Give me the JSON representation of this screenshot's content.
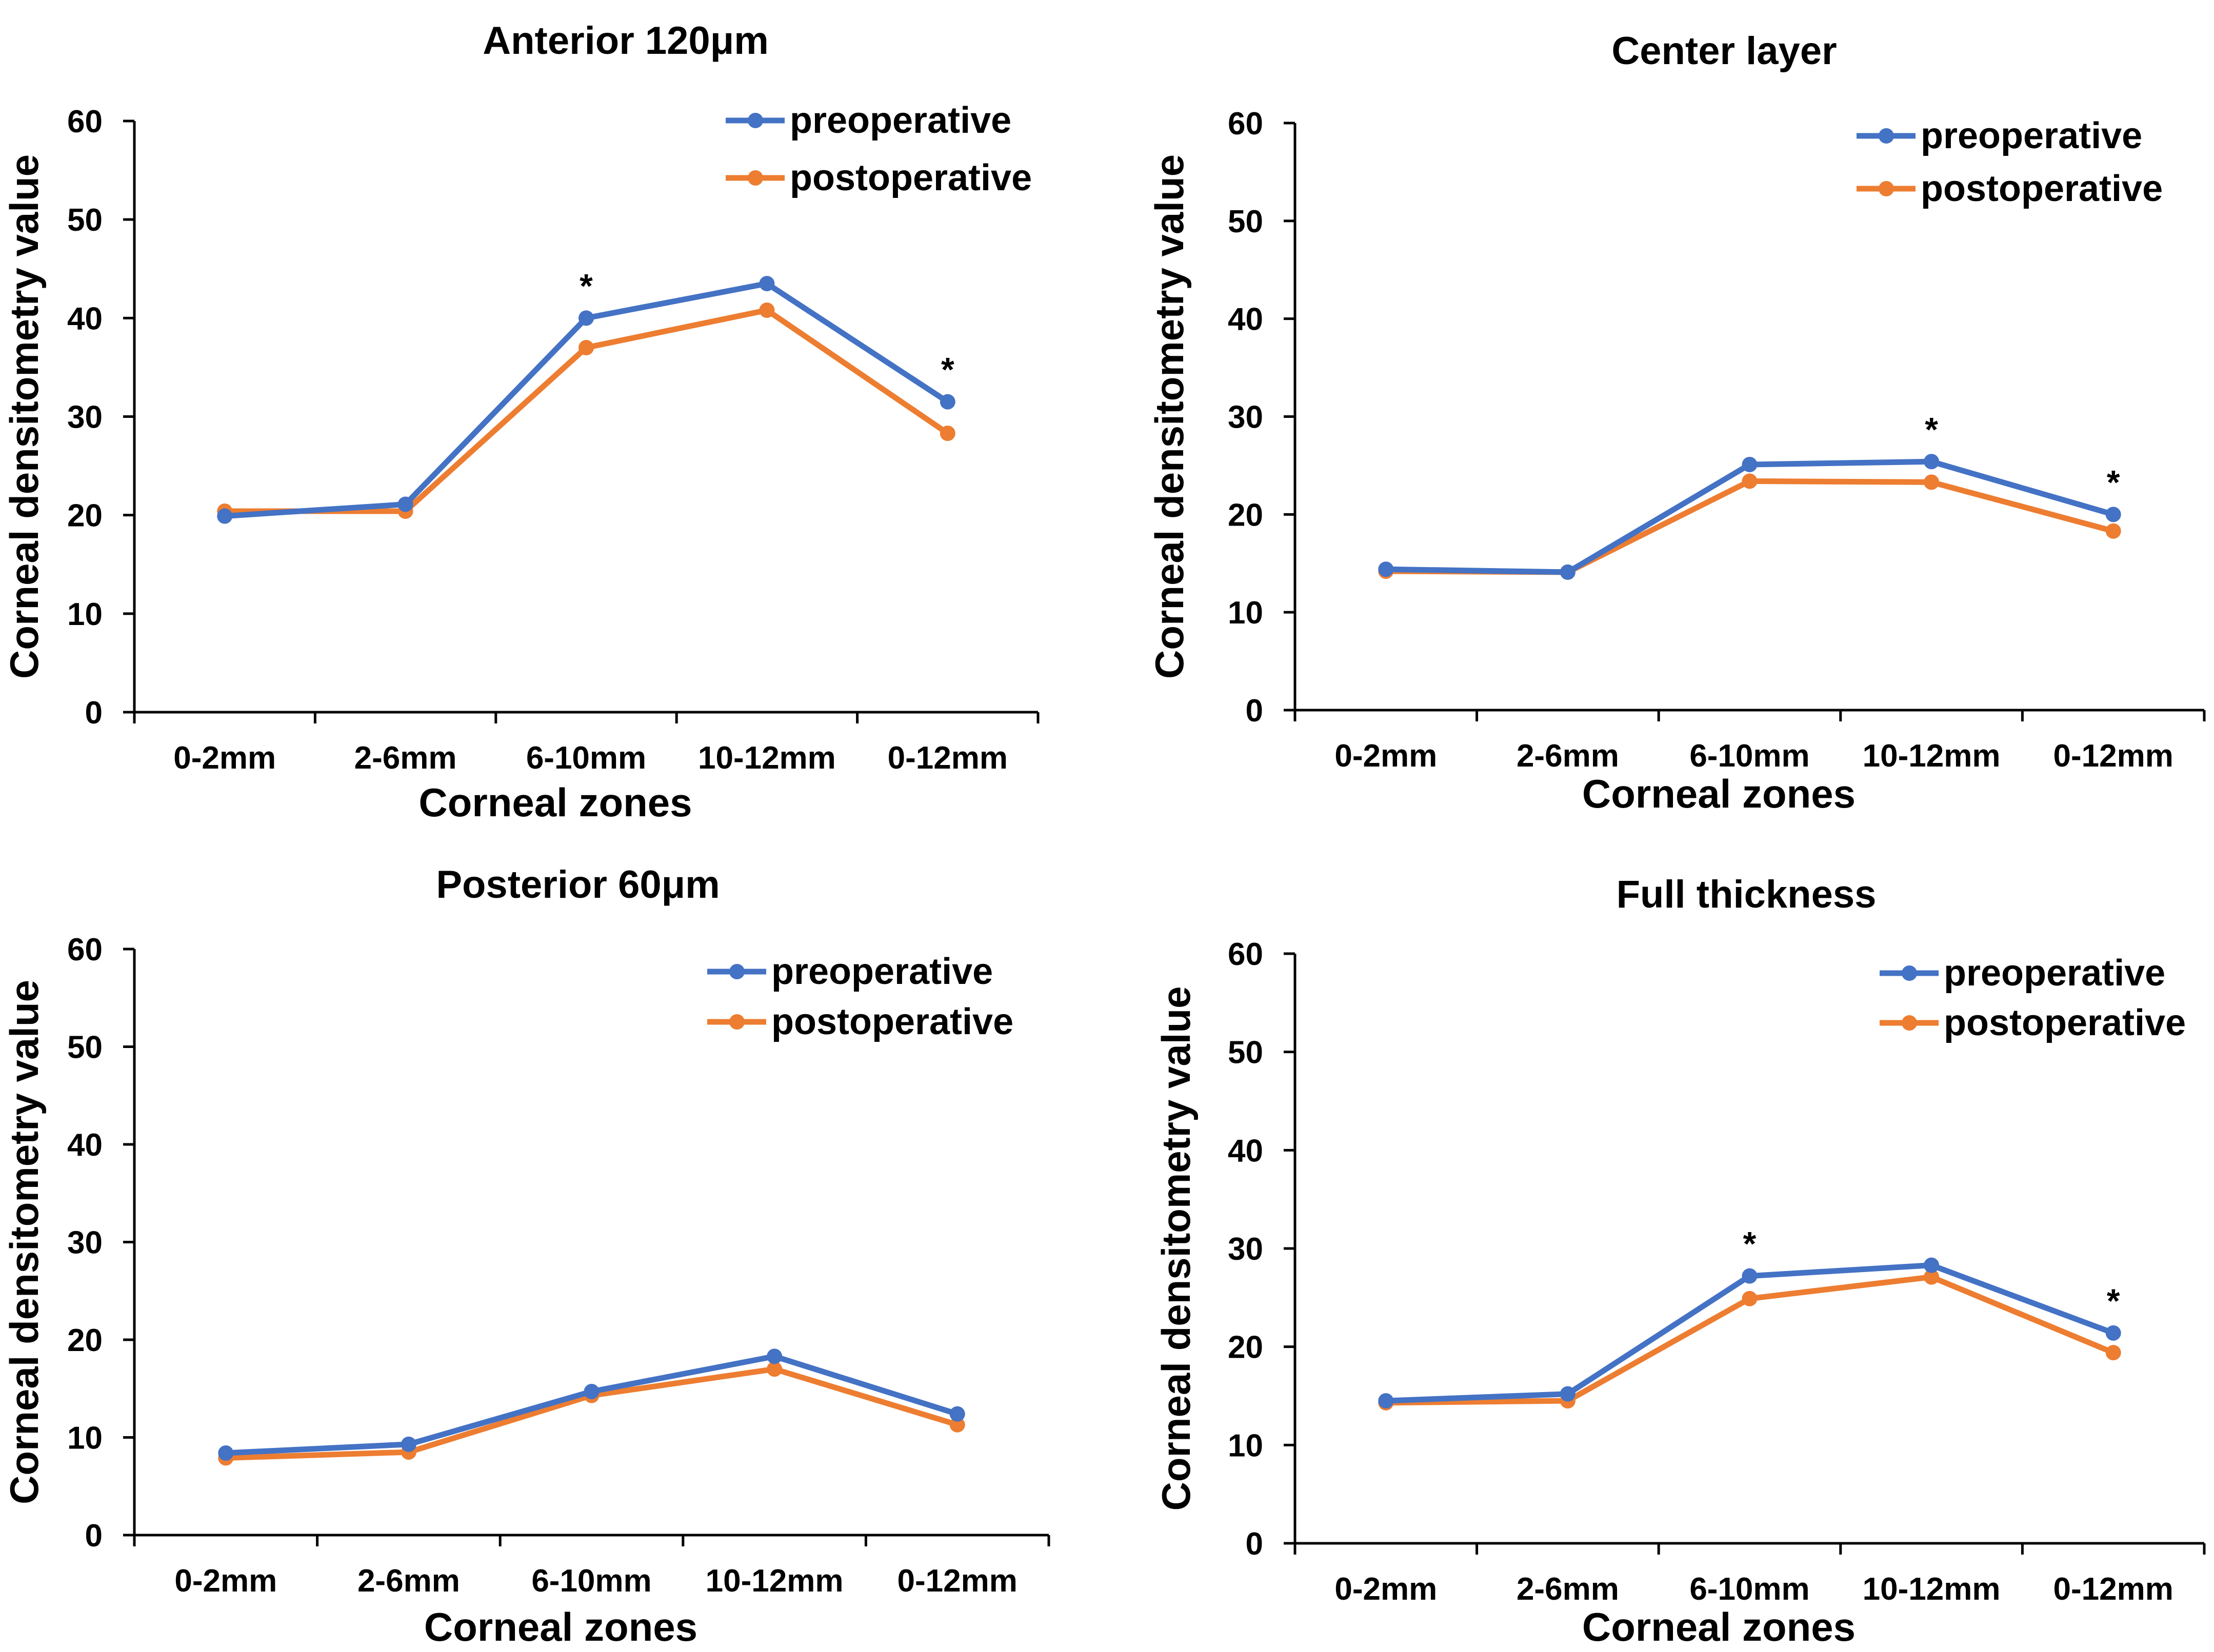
{
  "colors": {
    "preoperative": "#4472C4",
    "postoperative": "#ED7D31",
    "axis": "#000000"
  },
  "chart_data": [
    {
      "type": "line",
      "title": "Anterior 120μm",
      "xlabel": "Corneal zones",
      "ylabel": "Corneal densitometry value",
      "categories": [
        "0-2mm",
        "2-6mm",
        "6-10mm",
        "10-12mm",
        "0-12mm"
      ],
      "ylim": [
        0,
        60
      ],
      "yticks": [
        "0",
        "10",
        "20",
        "30",
        "40",
        "50",
        "60"
      ],
      "series": [
        {
          "name": "preoperative",
          "values": [
            19.9,
            21.1,
            40.0,
            43.5,
            31.5
          ]
        },
        {
          "name": "postoperative",
          "values": [
            20.4,
            20.4,
            37.0,
            40.8,
            28.3
          ]
        }
      ],
      "significance": [
        "",
        "",
        "*",
        "",
        "*"
      ]
    },
    {
      "type": "line",
      "title": "Center layer",
      "xlabel": "Corneal zones",
      "ylabel": "Corneal densitometry value",
      "categories": [
        "0-2mm",
        "2-6mm",
        "6-10mm",
        "10-12mm",
        "0-12mm"
      ],
      "ylim": [
        0,
        60
      ],
      "yticks": [
        "0",
        "10",
        "20",
        "30",
        "40",
        "50",
        "60"
      ],
      "series": [
        {
          "name": "preoperative",
          "values": [
            14.4,
            14.1,
            25.1,
            25.4,
            20.0
          ]
        },
        {
          "name": "postoperative",
          "values": [
            14.2,
            14.1,
            23.4,
            23.3,
            18.3
          ]
        }
      ],
      "significance": [
        "",
        "",
        "",
        "*",
        "*"
      ]
    },
    {
      "type": "line",
      "title": "Posterior  60μm",
      "xlabel": "Corneal zones",
      "ylabel": "Corneal densitometry value",
      "categories": [
        "0-2mm",
        "2-6mm",
        "6-10mm",
        "10-12mm",
        "0-12mm"
      ],
      "ylim": [
        0,
        60
      ],
      "yticks": [
        "0",
        "10",
        "20",
        "30",
        "40",
        "50",
        "60"
      ],
      "series": [
        {
          "name": "preoperative",
          "values": [
            8.4,
            9.3,
            14.7,
            18.3,
            12.4
          ]
        },
        {
          "name": "postoperative",
          "values": [
            7.9,
            8.5,
            14.3,
            17.0,
            11.3
          ]
        }
      ],
      "significance": [
        "",
        "",
        "",
        "",
        ""
      ]
    },
    {
      "type": "line",
      "title": "Full thickness",
      "xlabel": "Corneal zones",
      "ylabel": "Corneal densitometry value",
      "categories": [
        "0-2mm",
        "2-6mm",
        "6-10mm",
        "10-12mm",
        "0-12mm"
      ],
      "ylim": [
        0,
        60
      ],
      "yticks": [
        "0",
        "10",
        "20",
        "30",
        "40",
        "50",
        "60"
      ],
      "series": [
        {
          "name": "preoperative",
          "values": [
            14.5,
            15.2,
            27.2,
            28.3,
            21.4
          ]
        },
        {
          "name": "postoperative",
          "values": [
            14.3,
            14.5,
            24.9,
            27.1,
            19.4
          ]
        }
      ],
      "significance": [
        "",
        "",
        "*",
        "",
        "*"
      ]
    }
  ]
}
